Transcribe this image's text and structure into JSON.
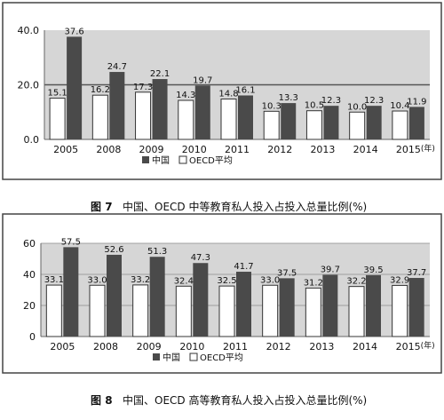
{
  "colors": {
    "china": "#4a4a4a",
    "oecd": "#ffffff",
    "oecd_stroke": "#333333",
    "plot_bg": "#d6d6d6",
    "frame": "#444444",
    "text": "#111111"
  },
  "figure7": {
    "caption_fig": "图 7",
    "caption_text": "中国、OECD 中等教育私人投入占投入总量比例(%)"
  },
  "figure8": {
    "caption_fig": "图 8",
    "caption_text": "中国、OECD 高等教育私人投入占投入总量比例(%)"
  },
  "chart_data": [
    {
      "type": "bar",
      "categories": [
        "2005",
        "2008",
        "2009",
        "2010",
        "2011",
        "2012",
        "2013",
        "2014",
        "2015"
      ],
      "x_unit": "(年)",
      "series": [
        {
          "name": "OECD平均",
          "values": [
            15.1,
            16.2,
            17.3,
            14.3,
            14.8,
            10.3,
            10.5,
            10.0,
            10.4
          ]
        },
        {
          "name": "中国",
          "values": [
            37.6,
            24.7,
            22.1,
            19.7,
            16.1,
            13.3,
            12.3,
            12.3,
            11.9
          ]
        }
      ],
      "legend": [
        "中国",
        "OECD平均"
      ],
      "legend_position": "bottom",
      "ylim": [
        0,
        40
      ],
      "yticks": [
        "0.0",
        "20.0",
        "40.0"
      ],
      "grid": false,
      "reference_line": 20,
      "title": "图 7 中国、OECD 中等教育私人投入占投入总量比例(%)"
    },
    {
      "type": "bar",
      "categories": [
        "2005",
        "2008",
        "2009",
        "2010",
        "2011",
        "2012",
        "2013",
        "2014",
        "2015"
      ],
      "x_unit": "(年)",
      "series": [
        {
          "name": "OECD平均",
          "values": [
            33.1,
            33.0,
            33.2,
            32.4,
            32.5,
            33.0,
            31.2,
            32.2,
            32.9
          ]
        },
        {
          "name": "中国",
          "values": [
            57.5,
            52.6,
            51.3,
            47.3,
            41.7,
            37.5,
            39.7,
            39.5,
            37.7
          ]
        }
      ],
      "legend": [
        "中国",
        "OECD平均"
      ],
      "legend_position": "bottom",
      "ylim": [
        0,
        60
      ],
      "yticks": [
        "0",
        "20",
        "40",
        "60"
      ],
      "grid": true,
      "title": "图 8 中国、OECD 高等教育私人投入占投入总量比例(%)"
    }
  ]
}
